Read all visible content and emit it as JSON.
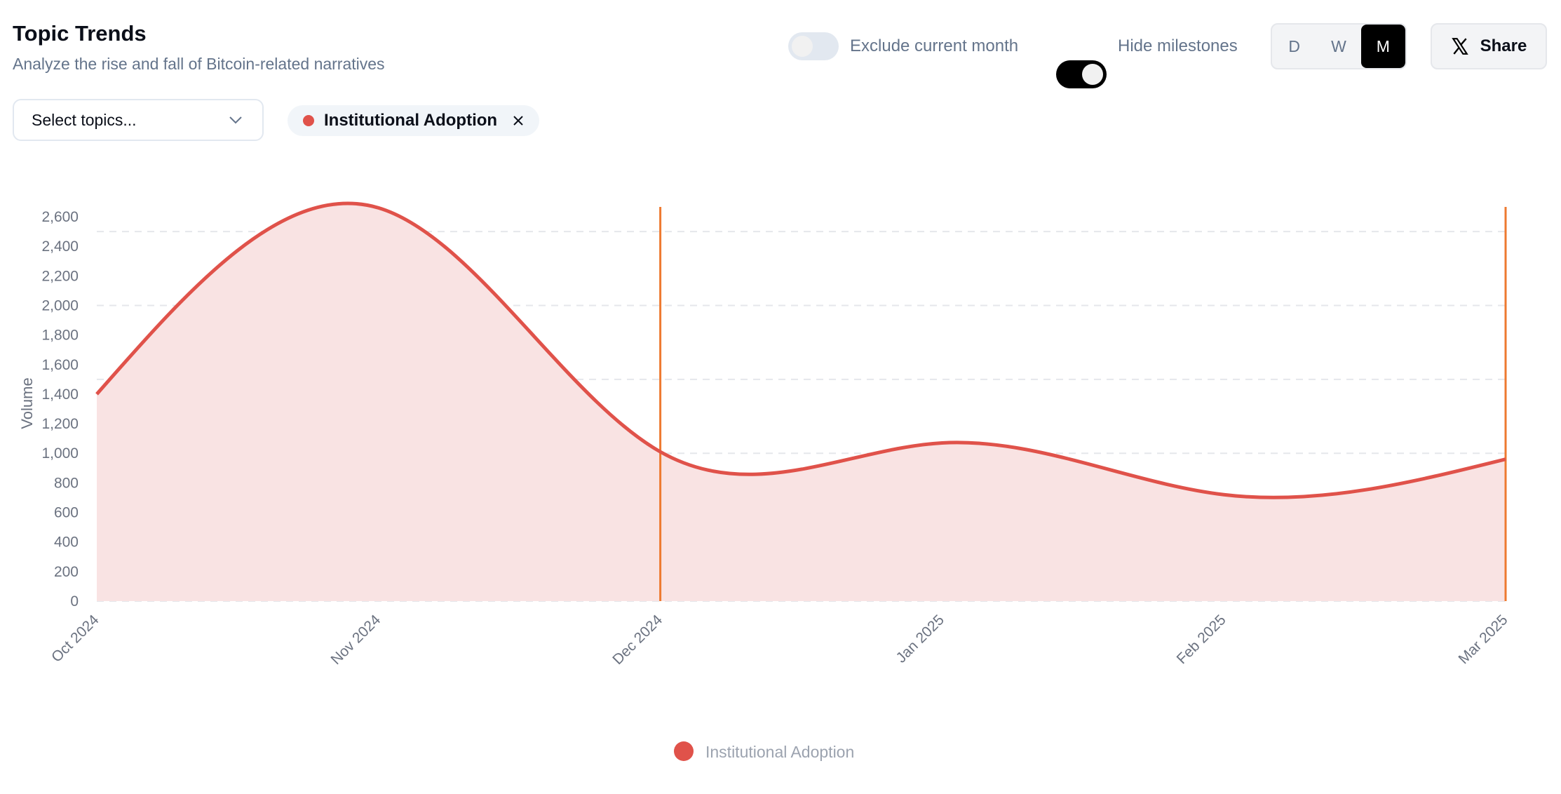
{
  "header": {
    "title": "Topic Trends",
    "subtitle": "Analyze the rise and fall of Bitcoin-related narratives"
  },
  "controls": {
    "exclude_current_month": {
      "label": "Exclude current month",
      "on": false
    },
    "hide_milestones": {
      "label": "Hide milestones",
      "on": true
    },
    "granularity": {
      "options": [
        "D",
        "W",
        "M"
      ],
      "selected": "M"
    },
    "share_label": "Share",
    "share_icon": "x-logo-icon"
  },
  "filters": {
    "select_placeholder": "Select topics...",
    "selected_topics": [
      {
        "label": "Institutional Adoption",
        "color": "#e0524a"
      }
    ]
  },
  "colors": {
    "series": "#e0524a",
    "fill": "#f9e3e3",
    "milestone": "#ee7a30",
    "axis_text": "#6b7280"
  },
  "chart_data": {
    "type": "area",
    "x": [
      "Oct 2024",
      "Nov 2024",
      "Dec 2024",
      "Jan 2025",
      "Feb 2025",
      "Mar 2025"
    ],
    "series": [
      {
        "name": "Institutional Adoption",
        "values": [
          1400,
          2660,
          1010,
          1070,
          720,
          960
        ]
      }
    ],
    "ylabel": "Volume",
    "ylim": [
      0,
      2600
    ],
    "yticks": [
      "0",
      "200",
      "400",
      "600",
      "800",
      "1,000",
      "1,200",
      "1,400",
      "1,600",
      "1,800",
      "2,000",
      "2,200",
      "2,400",
      "2,600"
    ],
    "gridlines": [
      0,
      500,
      1000,
      1500,
      2000,
      2500
    ],
    "milestones": [
      "Dec 2024",
      "Mar 2025"
    ],
    "legend": "bottom"
  }
}
